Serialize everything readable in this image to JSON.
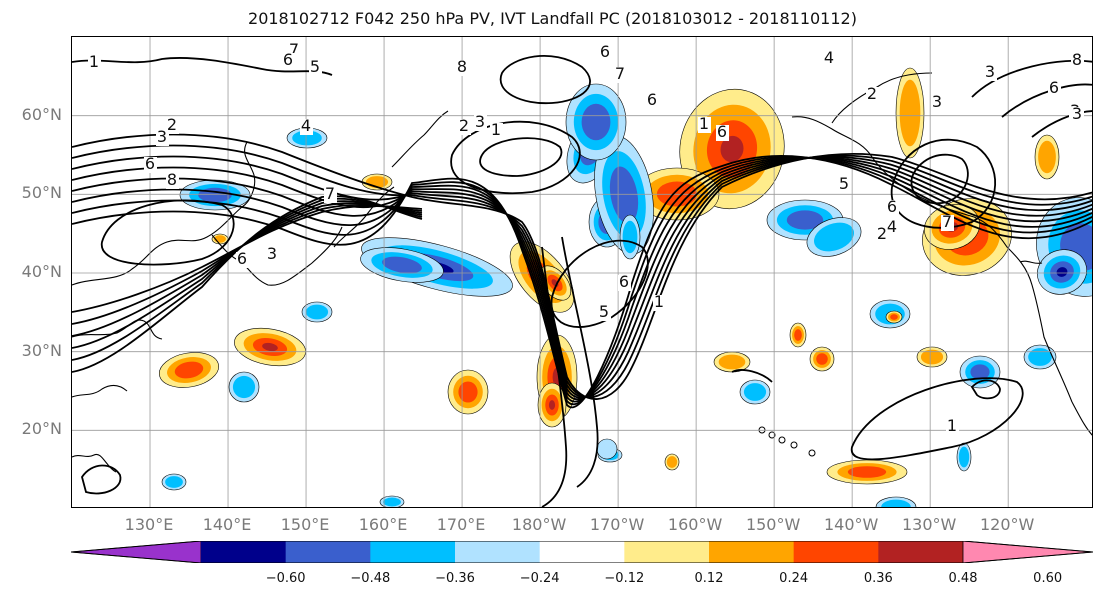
{
  "title": "2018102712 F042 250 hPa PV, IVT Landfall PC (2018103012 - 2018110112)",
  "map": {
    "projection": "PlateCarree",
    "lon_range": [
      120,
      251
    ],
    "lat_range": [
      10,
      70
    ],
    "lat_labels": [
      "20°N",
      "30°N",
      "40°N",
      "50°N",
      "60°N"
    ],
    "lat_values": [
      20,
      30,
      40,
      50,
      60
    ],
    "lon_labels": [
      "130°E",
      "140°E",
      "150°E",
      "160°E",
      "170°E",
      "180°W",
      "170°W",
      "160°W",
      "150°W",
      "140°W",
      "130°W",
      "120°W"
    ],
    "lon_values": [
      130,
      140,
      150,
      160,
      170,
      180,
      190,
      200,
      210,
      220,
      230,
      240
    ],
    "grid": true,
    "contour_labels": [
      "1",
      "2",
      "3",
      "4",
      "5",
      "6",
      "7",
      "8"
    ]
  },
  "colorbar": {
    "levels": [
      -0.6,
      -0.48,
      -0.36,
      -0.24,
      -0.12,
      0.12,
      0.24,
      0.36,
      0.48,
      0.6
    ],
    "tick_labels": [
      "−0.60",
      "−0.48",
      "−0.36",
      "−0.24",
      "−0.12",
      "0.12",
      "0.24",
      "0.36",
      "0.48",
      "0.60"
    ],
    "colors": [
      "#9932cc",
      "#00008b",
      "#3a5fcd",
      "#00bfff",
      "#b0e2ff",
      "#ffffff",
      "#ffec8b",
      "#ffa500",
      "#ff4500",
      "#b22222",
      "#ff88b0"
    ],
    "extend": "both"
  }
}
